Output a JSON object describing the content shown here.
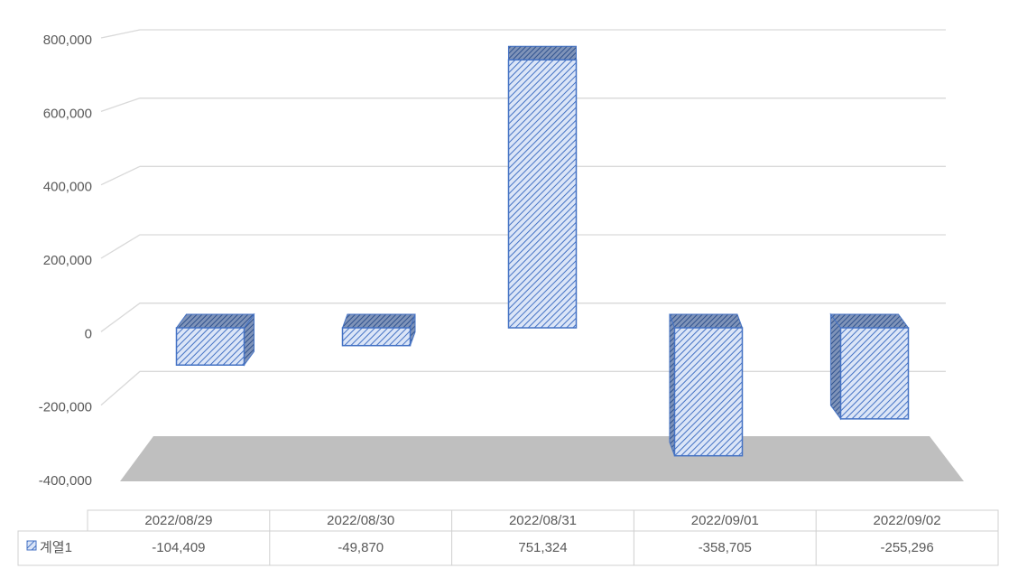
{
  "chart_data": {
    "type": "bar",
    "categories": [
      "2022/08/29",
      "2022/08/30",
      "2022/08/31",
      "2022/09/01",
      "2022/09/02"
    ],
    "series": [
      {
        "name": "계열1",
        "color": "#4472c4",
        "values": [
          -104409,
          -49870,
          751324,
          -358705,
          -255296
        ],
        "value_labels": [
          "-104,409",
          "-49,870",
          "751,324",
          "-358,705",
          "-255,296"
        ]
      }
    ],
    "ylim": [
      -400000,
      800000
    ],
    "yticks": [
      {
        "value": -400000,
        "label": "-400,000"
      },
      {
        "value": -200000,
        "label": "-200,000"
      },
      0,
      {
        "value": 200000,
        "label": "200,000"
      },
      {
        "value": 400000,
        "label": "400,000"
      },
      {
        "value": 600000,
        "label": "600,000"
      },
      {
        "value": 800000,
        "label": "800,000"
      }
    ],
    "grid": true
  }
}
